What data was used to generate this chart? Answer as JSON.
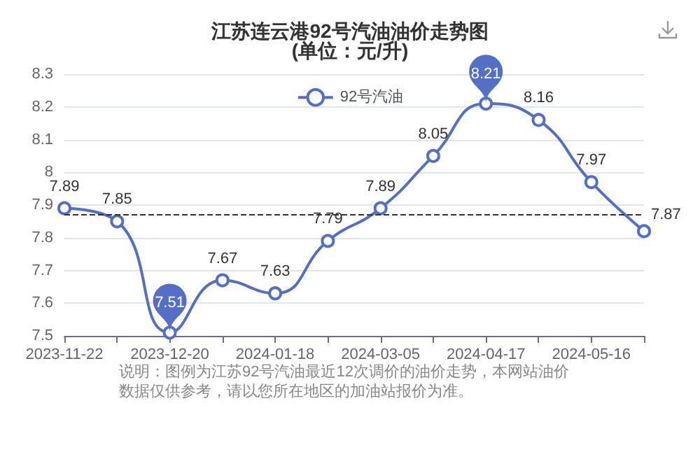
{
  "chart_data": {
    "type": "line",
    "title": "江苏连云港92号汽油油价走势图",
    "subtitle": "(单位：元/升)",
    "categories": [
      "2023-11-22",
      null,
      "2023-12-20",
      null,
      "2024-01-18",
      null,
      "2024-03-05",
      null,
      "2024-04-17",
      null,
      "2024-05-16",
      null
    ],
    "series": [
      {
        "name": "92号汽油",
        "color": "#5470c6",
        "values": [
          7.89,
          7.85,
          7.51,
          7.67,
          7.63,
          7.79,
          7.89,
          8.05,
          8.21,
          8.16,
          7.97,
          7.82
        ],
        "value_labels": [
          "7.89",
          "7.85",
          null,
          "7.67",
          "7.63",
          "7.79",
          "7.89",
          "8.05",
          null,
          "8.16",
          "7.97",
          null
        ]
      }
    ],
    "ylim": [
      7.5,
      8.3
    ],
    "yticks": [
      7.5,
      7.6,
      7.7,
      7.8,
      7.9,
      {
        "value": 8,
        "label": "8"
      },
      8.1,
      8.2,
      8.3
    ],
    "grid": "y",
    "legend": "top",
    "marker": "circle",
    "line_style": "solid",
    "ref_lines": [
      {
        "axis": "y",
        "value": 7.87,
        "label": "7.87"
      }
    ],
    "annotations": [
      {
        "text": "8.21",
        "x": "2024-04-17",
        "y": 8.21
      },
      {
        "text": "7.51",
        "x": "2023-12-20",
        "y": 7.51
      },
      "说明：图例为江苏92号汽油最近12次调价的油价走势，本网站油价数据仅供参考，请以您所在地区的加油站报价为准。"
    ]
  }
}
